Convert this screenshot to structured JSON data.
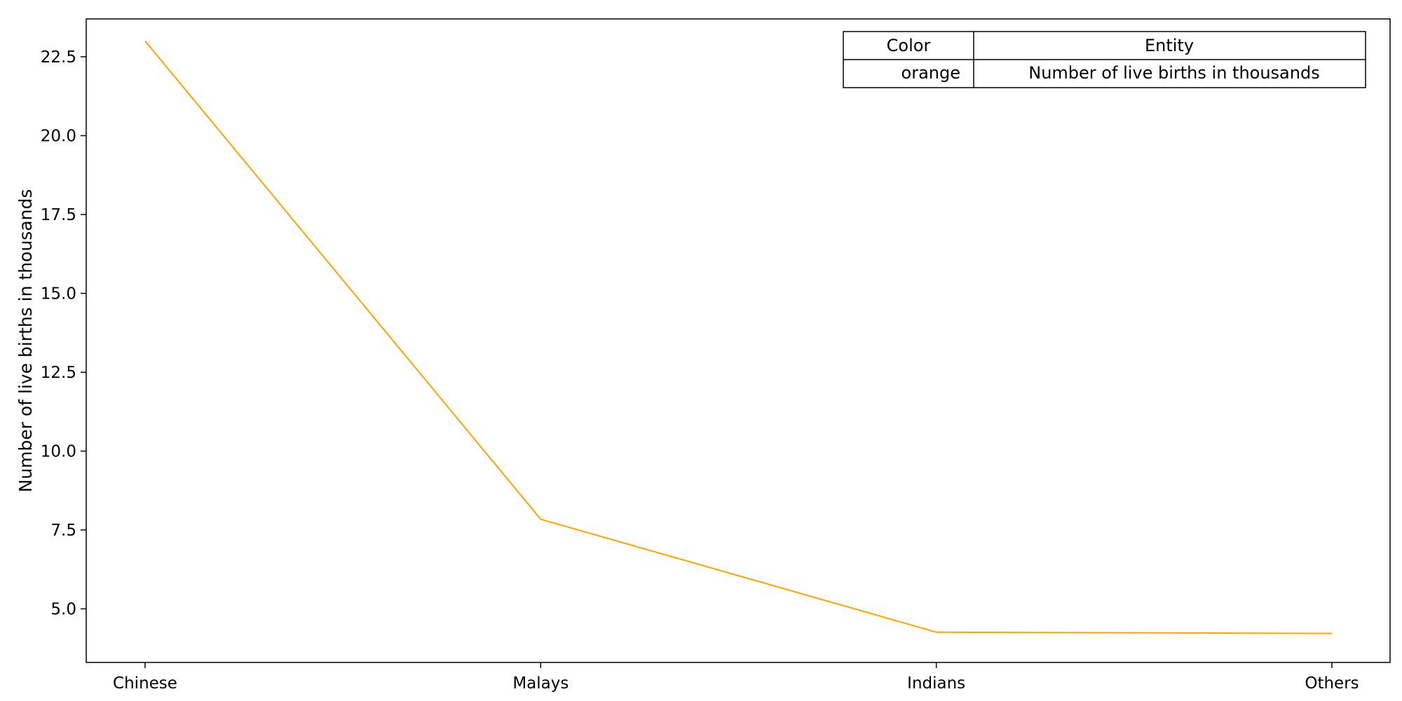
{
  "chart_data": {
    "type": "line",
    "categories": [
      "Chinese",
      "Malays",
      "Indians",
      "Others"
    ],
    "series": [
      {
        "values": [
          23.0,
          7.84,
          4.26,
          4.22
        ],
        "color": "#FFA500"
      }
    ],
    "xlabel": "",
    "ylabel": "Number of live births in thousands",
    "ylim": [
      3.3,
      23.7
    ],
    "yticks": [
      5.0,
      7.5,
      10.0,
      12.5,
      15.0,
      17.5,
      20.0,
      22.5
    ],
    "ytick_labels": [
      "5.0",
      "7.5",
      "10.0",
      "12.5",
      "15.0",
      "17.5",
      "20.0",
      "22.5"
    ],
    "grid": false,
    "legend_table": {
      "placement": "top-right",
      "headers": [
        "Color",
        "Entity"
      ],
      "rows": [
        [
          "orange",
          "Number of live births in thousands"
        ]
      ]
    }
  }
}
